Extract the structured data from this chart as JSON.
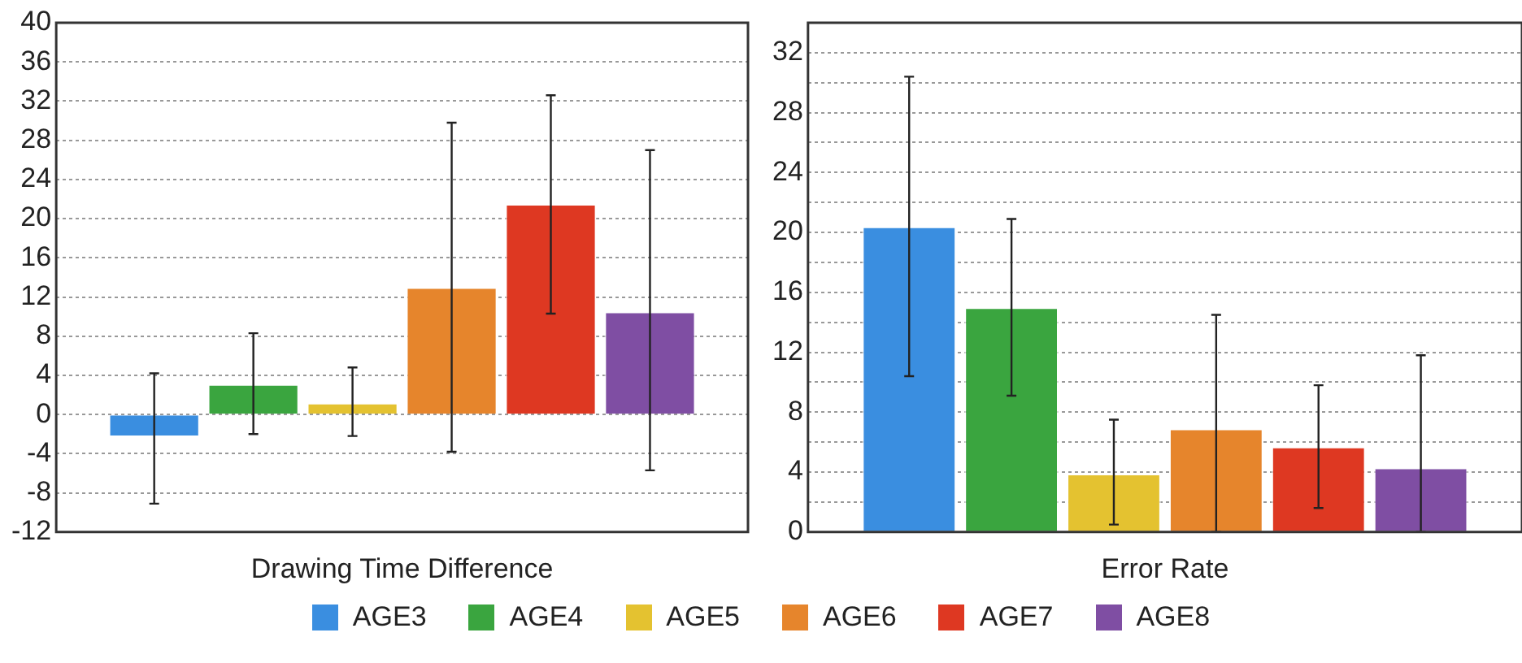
{
  "chart_data": [
    {
      "type": "bar",
      "xlabel": "Drawing Time Difference",
      "categories": [
        null
      ],
      "ylim": [
        -12,
        40
      ],
      "yticks": [
        -12,
        -8,
        -4,
        0,
        4,
        8,
        12,
        16,
        20,
        24,
        28,
        32,
        36,
        40
      ],
      "grid": "y",
      "legend": "bottom",
      "series": [
        {
          "name": "AGE3",
          "color": "#3a8ee0",
          "values": [
            -2.3
          ],
          "errors": [
            [
              -9.1,
              4.2
            ]
          ]
        },
        {
          "name": "AGE4",
          "color": "#3aa53f",
          "values": [
            3.1
          ],
          "errors": [
            [
              -2.0,
              8.3
            ]
          ]
        },
        {
          "name": "AGE5",
          "color": "#e4c230",
          "values": [
            1.2
          ],
          "errors": [
            [
              -2.2,
              4.8
            ]
          ]
        },
        {
          "name": "AGE6",
          "color": "#e6852c",
          "values": [
            13.0
          ],
          "errors": [
            [
              -3.8,
              29.8
            ]
          ]
        },
        {
          "name": "AGE7",
          "color": "#de3822",
          "values": [
            21.5
          ],
          "errors": [
            [
              10.3,
              32.6
            ]
          ]
        },
        {
          "name": "AGE8",
          "color": "#7f4ea3",
          "values": [
            10.5
          ],
          "errors": [
            [
              -5.7,
              27.0
            ]
          ]
        }
      ]
    },
    {
      "type": "bar",
      "xlabel": "Error Rate",
      "categories": [
        null
      ],
      "ylim": [
        0,
        34
      ],
      "yticks": [
        0,
        {
          "value": 2,
          "label": null
        },
        4,
        {
          "value": 6,
          "label": null
        },
        8,
        {
          "value": 10,
          "label": null
        },
        12,
        {
          "value": 14,
          "label": null
        },
        16,
        {
          "value": 18,
          "label": null
        },
        20,
        {
          "value": 22,
          "label": null
        },
        24,
        {
          "value": 26,
          "label": null
        },
        28,
        {
          "value": 30,
          "label": null
        },
        32
      ],
      "grid": "y",
      "series": [
        {
          "color": "#3a8ee0",
          "values": [
            20.4
          ],
          "errors": [
            [
              10.4,
              30.4
            ]
          ]
        },
        {
          "color": "#3aa53f",
          "values": [
            15.0
          ],
          "errors": [
            [
              9.1,
              20.9
            ]
          ]
        },
        {
          "color": "#e4c230",
          "values": [
            3.9
          ],
          "errors": [
            [
              0.5,
              7.5
            ]
          ]
        },
        {
          "color": "#e6852c",
          "values": [
            6.9
          ],
          "errors": [
            [
              0,
              14.5
            ]
          ]
        },
        {
          "color": "#de3822",
          "values": [
            5.7
          ],
          "errors": [
            [
              1.6,
              9.8
            ]
          ]
        },
        {
          "color": "#7f4ea3",
          "values": [
            4.3
          ],
          "errors": [
            [
              0,
              11.8
            ]
          ]
        }
      ]
    }
  ]
}
